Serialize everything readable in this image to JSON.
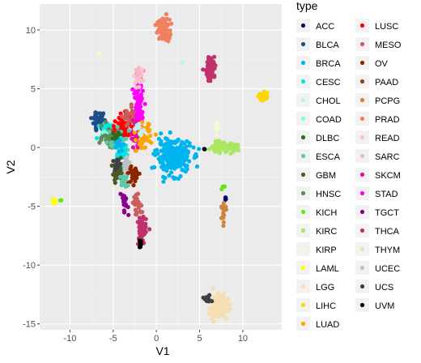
{
  "chart_data": {
    "type": "scatter",
    "xlabel": "V1",
    "ylabel": "V2",
    "xlim": [
      -13.5,
      14.5
    ],
    "ylim": [
      -15.5,
      12.2
    ],
    "x_ticks": [
      -10,
      -5,
      0,
      5,
      10
    ],
    "y_ticks": [
      -15,
      -10,
      -5,
      0,
      5,
      10
    ],
    "x_tick_labels": [
      "-10",
      "-5",
      "0",
      "5",
      "10"
    ],
    "y_tick_labels": [
      "-15",
      "-10",
      "-5",
      "0",
      "5",
      "10"
    ],
    "panel_background": "#ebebeb",
    "grid": true,
    "legend_position": "right",
    "legend": {
      "title": "type",
      "entries": [
        {
          "label": "ACC",
          "color": "#0a0a6e"
        },
        {
          "label": "BLCA",
          "color": "#1b4f8a"
        },
        {
          "label": "BRCA",
          "color": "#00b5ef"
        },
        {
          "label": "CESC",
          "color": "#00e6e6"
        },
        {
          "label": "CHOL",
          "color": "#bff0f5"
        },
        {
          "label": "COAD",
          "color": "#7fffd4"
        },
        {
          "label": "DLBC",
          "color": "#2e6b1f"
        },
        {
          "label": "ESCA",
          "color": "#5fc9a6"
        },
        {
          "label": "GBM",
          "color": "#4a5a2a"
        },
        {
          "label": "HNSC",
          "color": "#5e8a58"
        },
        {
          "label": "KICH",
          "color": "#66e61a"
        },
        {
          "label": "KIRC",
          "color": "#a9e663"
        },
        {
          "label": "KIRP",
          "color": "#f7f7d0"
        },
        {
          "label": "LAML",
          "color": "#ffff00"
        },
        {
          "label": "LGG",
          "color": "#ffdab9"
        },
        {
          "label": "LIHC",
          "color": "#ffd700"
        },
        {
          "label": "LUAD",
          "color": "#ffa500"
        },
        {
          "label": "LUSC",
          "color": "#ff0000"
        },
        {
          "label": "MESO",
          "color": "#cd5c5c"
        },
        {
          "label": "OV",
          "color": "#8b2500"
        },
        {
          "label": "PAAD",
          "color": "#8b4513"
        },
        {
          "label": "PCPG",
          "color": "#cd853f"
        },
        {
          "label": "PRAD",
          "color": "#f08060"
        },
        {
          "label": "READ",
          "color": "#ffc0cb"
        },
        {
          "label": "SARC",
          "color": "#f4b6c2"
        },
        {
          "label": "SKCM",
          "color": "#e0109a"
        },
        {
          "label": "STAD",
          "color": "#ff00ff"
        },
        {
          "label": "TGCT",
          "color": "#8b008b"
        },
        {
          "label": "THCA",
          "color": "#c0306a"
        },
        {
          "label": "THYM",
          "color": "#f5deb3"
        },
        {
          "label": "UCEC",
          "color": "#c0c0c0"
        },
        {
          "label": "UCS",
          "color": "#404040"
        },
        {
          "label": "UVM",
          "color": "#000000"
        }
      ]
    },
    "clusters": [
      {
        "type": "PRAD",
        "cx": 0.8,
        "cy": 10.0,
        "sx": 0.35,
        "sy": 0.45,
        "n": 110
      },
      {
        "type": "THCA",
        "cx": 6.3,
        "cy": 6.7,
        "sx": 0.28,
        "sy": 0.5,
        "n": 80
      },
      {
        "type": "LIHC",
        "cx": 12.3,
        "cy": 4.4,
        "sx": 0.25,
        "sy": 0.2,
        "n": 40
      },
      {
        "type": "THYM",
        "cx": 7.2,
        "cy": -13.5,
        "sx": 0.55,
        "sy": 0.55,
        "n": 110
      },
      {
        "type": "UCS",
        "cx": 5.9,
        "cy": -12.9,
        "sx": 0.2,
        "sy": 0.15,
        "n": 15
      },
      {
        "type": "LAML",
        "cx": -11.8,
        "cy": -4.6,
        "sx": 0.15,
        "sy": 0.12,
        "n": 15
      },
      {
        "type": "KICH",
        "cx": -11.0,
        "cy": -4.5,
        "sx": 0.05,
        "sy": 0.05,
        "n": 2
      },
      {
        "type": "BRCA",
        "cx": 2.0,
        "cy": -0.8,
        "sx": 1.0,
        "sy": 0.7,
        "n": 260
      },
      {
        "type": "KIRC",
        "cx": 7.7,
        "cy": 0.0,
        "sx": 0.85,
        "sy": 0.2,
        "n": 90
      },
      {
        "type": "KIRP",
        "cx": 7.0,
        "cy": 1.8,
        "sx": 0.1,
        "sy": 0.4,
        "n": 12
      },
      {
        "type": "KICH",
        "cx": 7.7,
        "cy": -3.3,
        "sx": 0.1,
        "sy": 0.1,
        "n": 4
      },
      {
        "type": "ACC",
        "cx": 8.0,
        "cy": -4.3,
        "sx": 0.1,
        "sy": 0.1,
        "n": 4
      },
      {
        "type": "PCPG",
        "cx": 7.8,
        "cy": -5.5,
        "sx": 0.15,
        "sy": 0.35,
        "n": 16
      },
      {
        "type": "UVM",
        "cx": 5.6,
        "cy": -0.2,
        "sx": 0.05,
        "sy": 0.05,
        "n": 2
      },
      {
        "type": "BLCA",
        "cx": -6.7,
        "cy": 2.2,
        "sx": 0.35,
        "sy": 0.4,
        "n": 45
      },
      {
        "type": "CESC",
        "cx": -5.7,
        "cy": 1.5,
        "sx": 0.5,
        "sy": 0.4,
        "n": 40
      },
      {
        "type": "COAD",
        "cx": -5.5,
        "cy": 1.0,
        "sx": 0.4,
        "sy": 0.3,
        "n": 25
      },
      {
        "type": "HNSC",
        "cx": -5.3,
        "cy": 0.9,
        "sx": 0.5,
        "sy": 0.45,
        "n": 50
      },
      {
        "type": "LUSC",
        "cx": -3.8,
        "cy": 1.7,
        "sx": 0.6,
        "sy": 0.5,
        "n": 70
      },
      {
        "type": "ESCA",
        "cx": -4.4,
        "cy": 0.4,
        "sx": 0.5,
        "sy": 0.6,
        "n": 45
      },
      {
        "type": "DLBC",
        "cx": -4.6,
        "cy": 0.9,
        "sx": 0.3,
        "sy": 0.3,
        "n": 15
      },
      {
        "type": "MESO",
        "cx": -2.8,
        "cy": 2.6,
        "sx": 0.5,
        "sy": 0.4,
        "n": 30
      },
      {
        "type": "STAD",
        "cx": -2.0,
        "cy": 3.8,
        "sx": 0.25,
        "sy": 1.3,
        "n": 70
      },
      {
        "type": "SKCM",
        "cx": -2.4,
        "cy": 1.2,
        "sx": 0.3,
        "sy": 0.6,
        "n": 35
      },
      {
        "type": "READ",
        "cx": -2.0,
        "cy": 5.8,
        "sx": 0.3,
        "sy": 0.4,
        "n": 20
      },
      {
        "type": "LUAD",
        "cx": -1.5,
        "cy": 0.9,
        "sx": 0.4,
        "sy": 0.6,
        "n": 45
      },
      {
        "type": "CHOL",
        "cx": -2.0,
        "cy": 1.7,
        "sx": 0.3,
        "sy": 0.3,
        "n": 10
      },
      {
        "type": "CESC",
        "cx": -4.0,
        "cy": -0.6,
        "sx": 0.4,
        "sy": 0.5,
        "n": 30
      },
      {
        "type": "UCEC",
        "cx": -3.5,
        "cy": -1.8,
        "sx": 0.35,
        "sy": 0.4,
        "n": 25
      },
      {
        "type": "GBM",
        "cx": -4.5,
        "cy": -2.2,
        "sx": 0.3,
        "sy": 0.4,
        "n": 40
      },
      {
        "type": "OV",
        "cx": -2.6,
        "cy": -2.3,
        "sx": 0.3,
        "sy": 0.4,
        "n": 35
      },
      {
        "type": "THCA",
        "cx": -1.7,
        "cy": -7.0,
        "sx": 0.25,
        "sy": 0.65,
        "n": 60
      },
      {
        "type": "TGCT",
        "cx": -3.7,
        "cy": -4.7,
        "sx": 0.2,
        "sy": 0.5,
        "n": 20
      },
      {
        "type": "MESO",
        "cx": -2.2,
        "cy": -4.9,
        "sx": 0.3,
        "sy": 0.4,
        "n": 25
      },
      {
        "type": "UVM",
        "cx": -1.8,
        "cy": -8.2,
        "sx": 0.12,
        "sy": 0.18,
        "n": 12
      },
      {
        "type": "ESCA",
        "cx": -3.8,
        "cy": -3.0,
        "sx": 0.25,
        "sy": 0.35,
        "n": 15
      },
      {
        "type": "BRCA",
        "cx": -4.3,
        "cy": 0.2,
        "sx": 0.25,
        "sy": 0.25,
        "n": 12
      },
      {
        "type": "UCS",
        "cx": -4.6,
        "cy": -1.3,
        "sx": 0.2,
        "sy": 0.3,
        "n": 12
      },
      {
        "type": "CHOL",
        "cx": 3.1,
        "cy": 7.2,
        "sx": 0.05,
        "sy": 0.05,
        "n": 2
      },
      {
        "type": "KIRP",
        "cx": -6.6,
        "cy": 8.0,
        "sx": 0.1,
        "sy": 0.1,
        "n": 3
      },
      {
        "type": "SARC",
        "cx": -2.2,
        "cy": 6.4,
        "sx": 0.2,
        "sy": 0.2,
        "n": 6
      }
    ]
  }
}
